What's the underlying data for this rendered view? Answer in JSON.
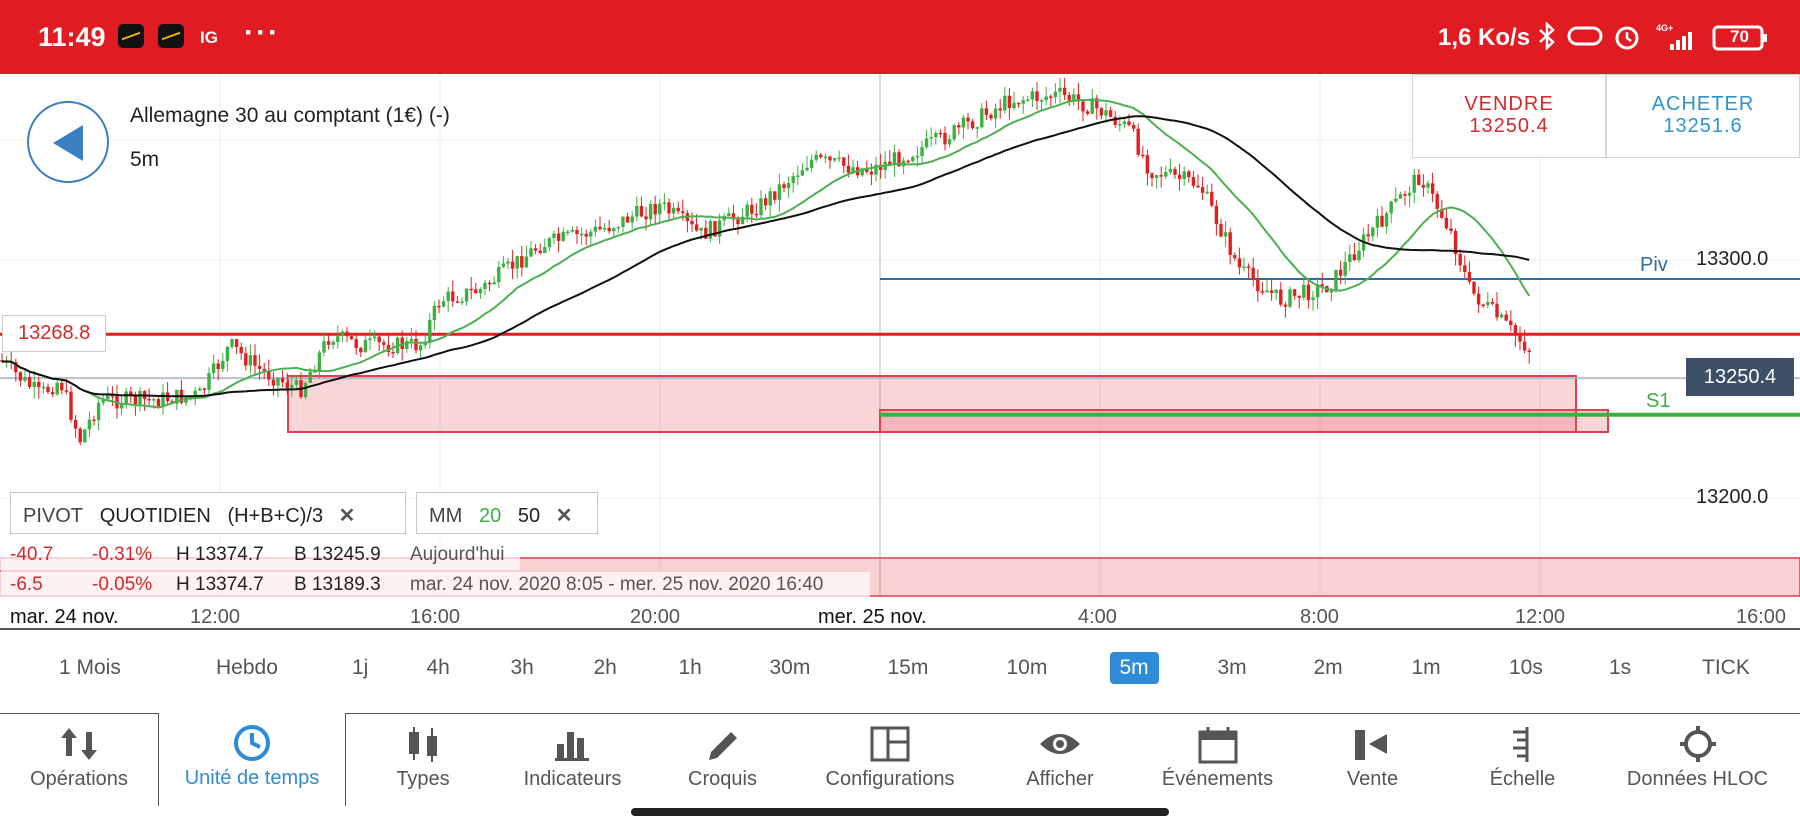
{
  "status_bar": {
    "time": "11:49",
    "ig": "IG",
    "more": "···",
    "speed": "1,6 Ko/s",
    "battery": "70"
  },
  "instrument": {
    "title": "Allemagne 30 au comptant (1€) (-)",
    "timeframe": "5m"
  },
  "sell": {
    "label": "VENDRE",
    "price": "13250.4"
  },
  "buy": {
    "label": "ACHETER",
    "price": "13251.6"
  },
  "price_tags": {
    "left": "13268.8",
    "last": "13250.4"
  },
  "axis_labels": {
    "p1": "13300.0",
    "p2": "13200.0"
  },
  "levels": {
    "piv": "Piv",
    "s1": "S1"
  },
  "pivot_chip": {
    "name": "PIVOT",
    "period": "QUOTIDIEN",
    "formula": "(H+B+C)/3",
    "close": "✕"
  },
  "mm_chip": {
    "name": "MM",
    "fast": "20",
    "slow": "50",
    "close": "✕"
  },
  "stats": [
    {
      "change": "-40.7",
      "pct": "-0.31%",
      "high": "H 13374.7",
      "low": "B 13245.9",
      "period": "Aujourd'hui"
    },
    {
      "change": "-6.5",
      "pct": "-0.05%",
      "high": "H 13374.7",
      "low": "B 13189.3",
      "period": "mar. 24 nov. 2020 8:05 - mer. 25 nov. 2020 16:40"
    }
  ],
  "time_axis": [
    "mar. 24 nov.",
    "12:00",
    "16:00",
    "20:00",
    "mer. 25 nov.",
    "4:00",
    "8:00",
    "12:00",
    "16:00"
  ],
  "timeframes": [
    "1 Mois",
    "Hebdo",
    "1j",
    "4h",
    "3h",
    "2h",
    "1h",
    "30m",
    "15m",
    "10m",
    "5m",
    "3m",
    "2m",
    "1m",
    "10s",
    "1s",
    "TICK"
  ],
  "active_timeframe": "5m",
  "toolbar": [
    "Opérations",
    "Unité de temps",
    "Types",
    "Indicateurs",
    "Croquis",
    "Configurations",
    "Afficher",
    "Événements",
    "Vente",
    "Échelle",
    "Données HLOC"
  ],
  "toolbar_icons": [
    "arrows-icon",
    "clock-icon",
    "candles-icon",
    "bars-icon",
    "pencil-icon",
    "layout-icon",
    "eye-icon",
    "calendar-icon",
    "sell-icon",
    "scale-icon",
    "crosshair-icon"
  ],
  "colors": {
    "status_bar": "#e11b22",
    "up": "#3cb043",
    "down": "#e02020",
    "accent": "#2e8bd8",
    "sell": "#d42a2a",
    "buy": "#2e93d1",
    "pivot": "#2e6da4"
  },
  "chart_data": {
    "type": "candlestick",
    "ylabels": [
      "13300.0",
      "13200.0"
    ],
    "levels": [
      {
        "name": "Piv",
        "value": 13292
      },
      {
        "name": "S1",
        "value": 13235
      },
      {
        "name": "",
        "value": 13268.8
      }
    ],
    "last_price": 13250.4,
    "moving_averages": [
      20,
      50
    ]
  }
}
